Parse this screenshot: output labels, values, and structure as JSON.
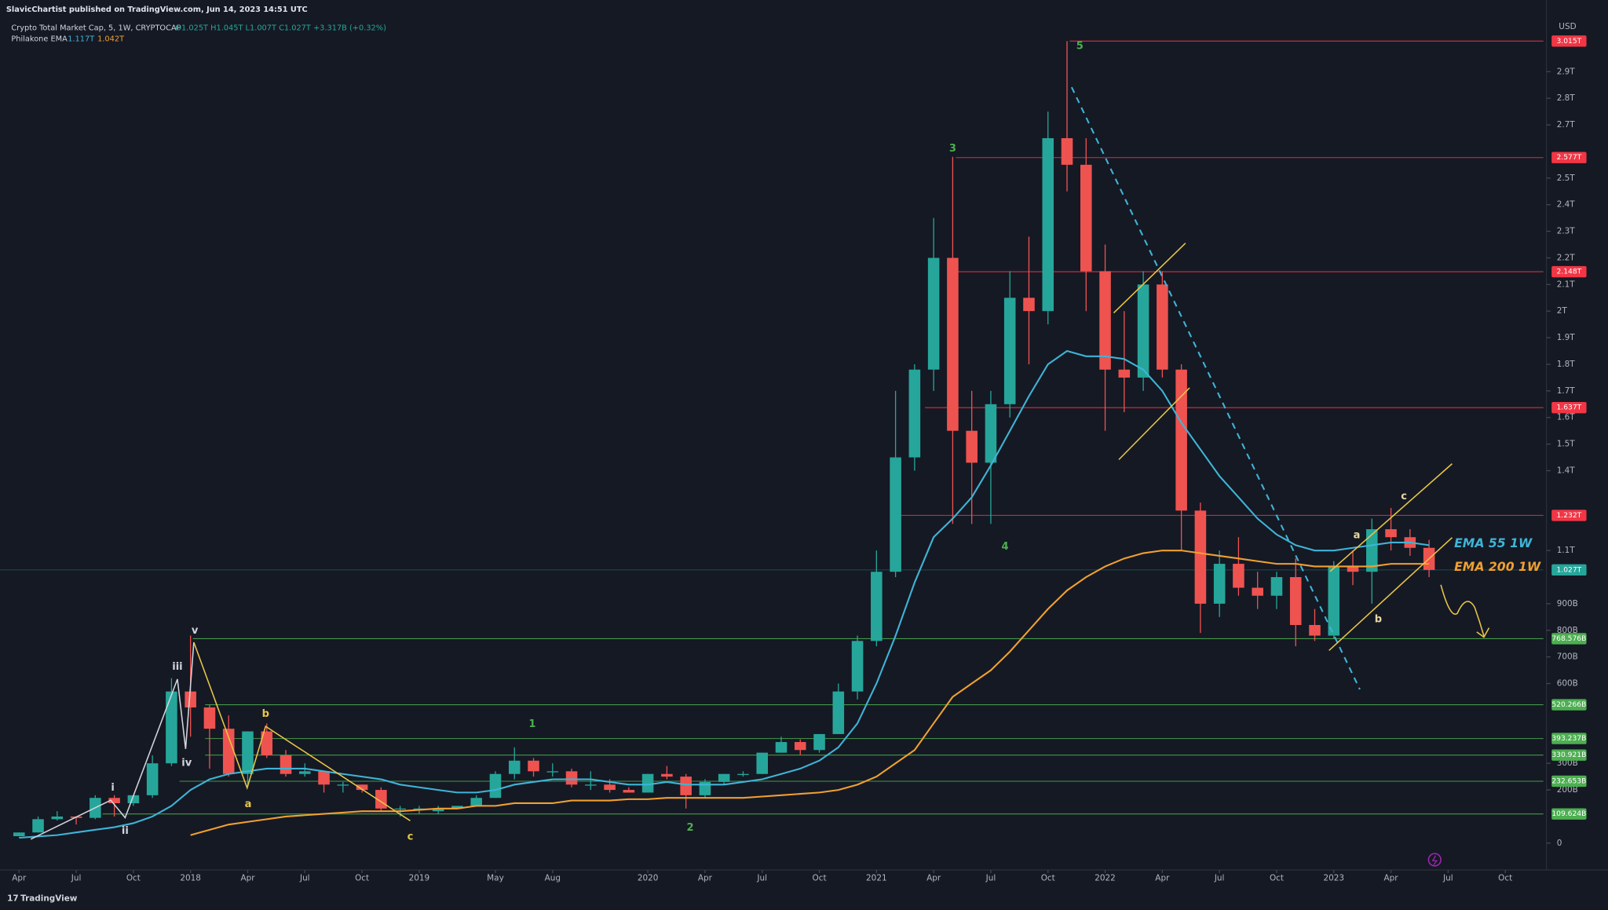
{
  "header": {
    "publisher": "SlavicChartist published on TradingView.com, Jun 14, 2023 14:51 UTC",
    "symbol": "Crypto Total Market Cap, 5, 1W, CRYPTOCAP",
    "ohlc": "O1.025T H1.045T L1.007T C1.027T +3.317B (+0.32%)",
    "indicator": "Philakone EMA",
    "indicator_values": [
      "1.117T",
      "1.042T"
    ]
  },
  "footer": {
    "brand": "TradingView"
  },
  "chart_data": {
    "type": "candlestick",
    "y_unit": "USD",
    "x": [
      "2017-04",
      "2017-05",
      "2017-06",
      "2017-07",
      "2017-08",
      "2017-09",
      "2017-10",
      "2017-11",
      "2017-12",
      "2018-01",
      "2018-02",
      "2018-03",
      "2018-04",
      "2018-05",
      "2018-06",
      "2018-07",
      "2018-08",
      "2018-09",
      "2018-10",
      "2018-11",
      "2018-12",
      "2019-01",
      "2019-02",
      "2019-03",
      "2019-04",
      "2019-05",
      "2019-06",
      "2019-07",
      "2019-08",
      "2019-09",
      "2019-10",
      "2019-11",
      "2019-12",
      "2020-01",
      "2020-02",
      "2020-03",
      "2020-04",
      "2020-05",
      "2020-06",
      "2020-07",
      "2020-08",
      "2020-09",
      "2020-10",
      "2020-11",
      "2020-12",
      "2021-01",
      "2021-02",
      "2021-03",
      "2021-04",
      "2021-05",
      "2021-06",
      "2021-07",
      "2021-08",
      "2021-09",
      "2021-10",
      "2021-11",
      "2021-12",
      "2022-01",
      "2022-02",
      "2022-03",
      "2022-04",
      "2022-05",
      "2022-06",
      "2022-07",
      "2022-08",
      "2022-09",
      "2022-10",
      "2022-11",
      "2022-12",
      "2023-01",
      "2023-02",
      "2023-03",
      "2023-04",
      "2023-05",
      "2023-06"
    ],
    "candles": {
      "up_color": "#26a69a",
      "down_color": "#ef5350",
      "open": [
        0.026,
        0.04,
        0.09,
        0.1,
        0.095,
        0.17,
        0.15,
        0.18,
        0.3,
        0.57,
        0.51,
        0.43,
        0.26,
        0.42,
        0.33,
        0.26,
        0.27,
        0.22,
        0.22,
        0.2,
        0.13,
        0.13,
        0.12,
        0.13,
        0.14,
        0.17,
        0.26,
        0.31,
        0.27,
        0.27,
        0.22,
        0.22,
        0.2,
        0.19,
        0.26,
        0.25,
        0.18,
        0.23,
        0.26,
        0.26,
        0.34,
        0.38,
        0.35,
        0.41,
        0.57,
        0.76,
        1.02,
        1.45,
        1.78,
        2.2,
        1.55,
        1.43,
        1.65,
        2.05,
        2.0,
        2.65,
        2.55,
        2.15,
        1.78,
        1.75,
        2.1,
        1.78,
        1.25,
        0.9,
        1.05,
        0.96,
        0.93,
        1.0,
        0.82,
        0.78,
        1.04,
        1.02,
        1.18,
        1.15,
        1.11
      ],
      "high": [
        0.04,
        0.1,
        0.12,
        0.1,
        0.18,
        0.18,
        0.18,
        0.33,
        0.62,
        0.78,
        0.52,
        0.48,
        0.42,
        0.45,
        0.35,
        0.3,
        0.27,
        0.23,
        0.22,
        0.21,
        0.14,
        0.14,
        0.14,
        0.14,
        0.18,
        0.27,
        0.36,
        0.32,
        0.3,
        0.28,
        0.27,
        0.24,
        0.21,
        0.26,
        0.29,
        0.26,
        0.24,
        0.26,
        0.27,
        0.34,
        0.4,
        0.39,
        0.41,
        0.6,
        0.78,
        1.1,
        1.7,
        1.8,
        2.35,
        2.58,
        1.7,
        1.7,
        2.15,
        2.28,
        2.75,
        3.015,
        2.65,
        2.25,
        2.0,
        2.15,
        2.15,
        1.8,
        1.28,
        1.1,
        1.15,
        1.02,
        1.02,
        1.07,
        0.88,
        1.06,
        1.1,
        1.22,
        1.26,
        1.18,
        1.14
      ],
      "low": [
        0.025,
        0.04,
        0.085,
        0.07,
        0.09,
        0.1,
        0.14,
        0.17,
        0.29,
        0.4,
        0.28,
        0.25,
        0.21,
        0.32,
        0.25,
        0.25,
        0.19,
        0.19,
        0.19,
        0.12,
        0.1,
        0.11,
        0.11,
        0.13,
        0.14,
        0.17,
        0.24,
        0.25,
        0.25,
        0.21,
        0.2,
        0.19,
        0.19,
        0.19,
        0.24,
        0.13,
        0.17,
        0.22,
        0.25,
        0.26,
        0.34,
        0.33,
        0.34,
        0.41,
        0.54,
        0.74,
        1.0,
        1.4,
        1.7,
        1.2,
        1.2,
        1.2,
        1.6,
        1.8,
        1.95,
        2.45,
        2.0,
        1.55,
        1.62,
        1.7,
        1.75,
        1.1,
        0.79,
        0.85,
        0.93,
        0.88,
        0.88,
        0.74,
        0.76,
        0.77,
        0.97,
        0.9,
        1.1,
        1.08,
        1.0
      ],
      "close": [
        0.04,
        0.09,
        0.1,
        0.095,
        0.17,
        0.15,
        0.18,
        0.3,
        0.57,
        0.51,
        0.43,
        0.26,
        0.42,
        0.33,
        0.26,
        0.27,
        0.22,
        0.22,
        0.2,
        0.13,
        0.13,
        0.13,
        0.13,
        0.14,
        0.17,
        0.26,
        0.31,
        0.27,
        0.27,
        0.22,
        0.22,
        0.2,
        0.19,
        0.26,
        0.25,
        0.18,
        0.23,
        0.26,
        0.26,
        0.34,
        0.38,
        0.35,
        0.41,
        0.57,
        0.76,
        1.02,
        1.45,
        1.78,
        2.2,
        1.55,
        1.43,
        1.65,
        2.05,
        2.0,
        2.65,
        2.55,
        2.15,
        1.78,
        1.75,
        2.1,
        1.78,
        1.25,
        0.9,
        1.05,
        0.96,
        0.93,
        1.0,
        0.82,
        0.78,
        1.04,
        1.02,
        1.18,
        1.15,
        1.11,
        1.027
      ]
    },
    "lines": [
      {
        "name": "EMA 55 1W",
        "color": "#3fb4d6",
        "values": [
          0.02,
          0.025,
          0.03,
          0.04,
          0.05,
          0.06,
          0.075,
          0.1,
          0.14,
          0.2,
          0.24,
          0.26,
          0.27,
          0.28,
          0.28,
          0.28,
          0.27,
          0.26,
          0.25,
          0.24,
          0.22,
          0.21,
          0.2,
          0.19,
          0.19,
          0.2,
          0.22,
          0.23,
          0.24,
          0.24,
          0.24,
          0.23,
          0.22,
          0.22,
          0.23,
          0.22,
          0.22,
          0.22,
          0.23,
          0.24,
          0.26,
          0.28,
          0.31,
          0.36,
          0.45,
          0.6,
          0.78,
          0.98,
          1.15,
          1.22,
          1.3,
          1.42,
          1.55,
          1.68,
          1.8,
          1.85,
          1.83,
          1.83,
          1.82,
          1.78,
          1.7,
          1.58,
          1.48,
          1.38,
          1.3,
          1.22,
          1.16,
          1.12,
          1.1,
          1.1,
          1.11,
          1.12,
          1.13,
          1.13,
          1.12
        ]
      },
      {
        "name": "EMA 200 1W",
        "color": "#f0a030",
        "values": [
          null,
          null,
          null,
          null,
          null,
          null,
          null,
          null,
          null,
          0.03,
          0.05,
          0.07,
          0.08,
          0.09,
          0.1,
          0.105,
          0.11,
          0.115,
          0.12,
          0.12,
          0.12,
          0.125,
          0.13,
          0.13,
          0.14,
          0.14,
          0.15,
          0.15,
          0.15,
          0.16,
          0.16,
          0.16,
          0.165,
          0.165,
          0.17,
          0.17,
          0.17,
          0.17,
          0.17,
          0.175,
          0.18,
          0.185,
          0.19,
          0.2,
          0.22,
          0.25,
          0.3,
          0.35,
          0.45,
          0.55,
          0.6,
          0.65,
          0.72,
          0.8,
          0.88,
          0.95,
          1.0,
          1.04,
          1.07,
          1.09,
          1.1,
          1.1,
          1.09,
          1.08,
          1.07,
          1.06,
          1.05,
          1.05,
          1.04,
          1.04,
          1.04,
          1.04,
          1.05,
          1.05,
          1.05
        ]
      }
    ],
    "levels": [
      {
        "value": 3.015,
        "label": "3.015T",
        "color": "#f23645"
      },
      {
        "value": 2.577,
        "label": "2.577T",
        "color": "#f23645"
      },
      {
        "value": 2.148,
        "label": "2.148T",
        "color": "#f23645"
      },
      {
        "value": 1.637,
        "label": "1.637T",
        "color": "#f23645"
      },
      {
        "value": 1.232,
        "label": "1.232T",
        "color": "#f23645"
      },
      {
        "value": 1.027,
        "label": "1.027T",
        "color": "#26a69a"
      },
      {
        "value": 0.768576,
        "label": "768.576B",
        "color": "#4caf50"
      },
      {
        "value": 0.520266,
        "label": "520.266B",
        "color": "#4caf50"
      },
      {
        "value": 0.393237,
        "label": "393.237B",
        "color": "#4caf50"
      },
      {
        "value": 0.330921,
        "label": "330.921B",
        "color": "#4caf50"
      },
      {
        "value": 0.232653,
        "label": "232.653B",
        "color": "#4caf50"
      },
      {
        "value": 0.109624,
        "label": "109.624B",
        "color": "#4caf50"
      }
    ],
    "annotations": [
      {
        "text": "5",
        "color": "#4caf50"
      },
      {
        "text": "3",
        "color": "#4caf50"
      },
      {
        "text": "4",
        "color": "#4caf50"
      },
      {
        "text": "1",
        "color": "#4caf50"
      },
      {
        "text": "2",
        "color": "#4caf50"
      },
      {
        "text": "i",
        "color": "#d1d4dc"
      },
      {
        "text": "ii",
        "color": "#d1d4dc"
      },
      {
        "text": "iii",
        "color": "#d1d4dc"
      },
      {
        "text": "iv",
        "color": "#d1d4dc"
      },
      {
        "text": "v",
        "color": "#d1d4dc"
      },
      {
        "text": "a",
        "color": "#e8c547"
      },
      {
        "text": "b",
        "color": "#e8c547"
      },
      {
        "text": "c",
        "color": "#e8c547"
      },
      {
        "text": "a",
        "color": "#e8d9a0"
      },
      {
        "text": "b",
        "color": "#e8d9a0"
      },
      {
        "text": "c",
        "color": "#e8d9a0"
      }
    ],
    "xlim": [
      "2017-03",
      "2023-12"
    ],
    "ylim": [
      -0.155,
      3.1
    ],
    "log_scale": false,
    "grid": false,
    "xticks": [
      {
        "value": "2017-04",
        "label": "Apr"
      },
      {
        "value": "2017-07",
        "label": "Jul"
      },
      {
        "value": "2017-10",
        "label": "Oct"
      },
      {
        "value": "2018-01",
        "label": "2018"
      },
      {
        "value": "2018-04",
        "label": "Apr"
      },
      {
        "value": "2018-07",
        "label": "Jul"
      },
      {
        "value": "2018-10",
        "label": "Oct"
      },
      {
        "value": "2019-01",
        "label": "2019"
      },
      {
        "value": "2019-05",
        "label": "May"
      },
      {
        "value": "2019-08",
        "label": "Aug"
      },
      {
        "value": "2020-01",
        "label": "2020"
      },
      {
        "value": "2020-04",
        "label": "Apr"
      },
      {
        "value": "2020-07",
        "label": "Jul"
      },
      {
        "value": "2020-10",
        "label": "Oct"
      },
      {
        "value": "2021-01",
        "label": "2021"
      },
      {
        "value": "2021-04",
        "label": "Apr"
      },
      {
        "value": "2021-07",
        "label": "Jul"
      },
      {
        "value": "2021-10",
        "label": "Oct"
      },
      {
        "value": "2022-01",
        "label": "2022"
      },
      {
        "value": "2022-04",
        "label": "Apr"
      },
      {
        "value": "2022-07",
        "label": "Jul"
      },
      {
        "value": "2022-10",
        "label": "Oct"
      },
      {
        "value": "2023-01",
        "label": "2023"
      },
      {
        "value": "2023-04",
        "label": "Apr"
      },
      {
        "value": "2023-07",
        "label": "Jul"
      },
      {
        "value": "2023-10",
        "label": "Oct"
      }
    ],
    "yticks": [
      0,
      {
        "value": 0.2,
        "label": "200B"
      },
      {
        "value": 0.3,
        "label": "300B"
      },
      {
        "value": 0.6,
        "label": "600B"
      },
      {
        "value": 0.7,
        "label": "700B"
      },
      {
        "value": 0.8,
        "label": "800B"
      },
      {
        "value": 0.9,
        "label": "900B"
      },
      {
        "value": 1.1,
        "label": "1.1T"
      },
      {
        "value": 1.4,
        "label": "1.4T"
      },
      {
        "value": 1.5,
        "label": "1.5T"
      },
      {
        "value": 1.6,
        "label": "1.6T"
      },
      {
        "value": 1.7,
        "label": "1.7T"
      },
      {
        "value": 1.8,
        "label": "1.8T"
      },
      {
        "value": 1.9,
        "label": "1.9T"
      },
      {
        "value": 2,
        "label": "2T"
      },
      {
        "value": 2.1,
        "label": "2.1T"
      },
      {
        "value": 2.2,
        "label": "2.2T"
      },
      {
        "value": 2.3,
        "label": "2.3T"
      },
      {
        "value": 2.4,
        "label": "2.4T"
      },
      {
        "value": 2.5,
        "label": "2.5T"
      },
      {
        "value": 2.7,
        "label": "2.7T"
      },
      {
        "value": 2.8,
        "label": "2.8T"
      },
      {
        "value": 2.9,
        "label": "2.9T"
      }
    ]
  }
}
